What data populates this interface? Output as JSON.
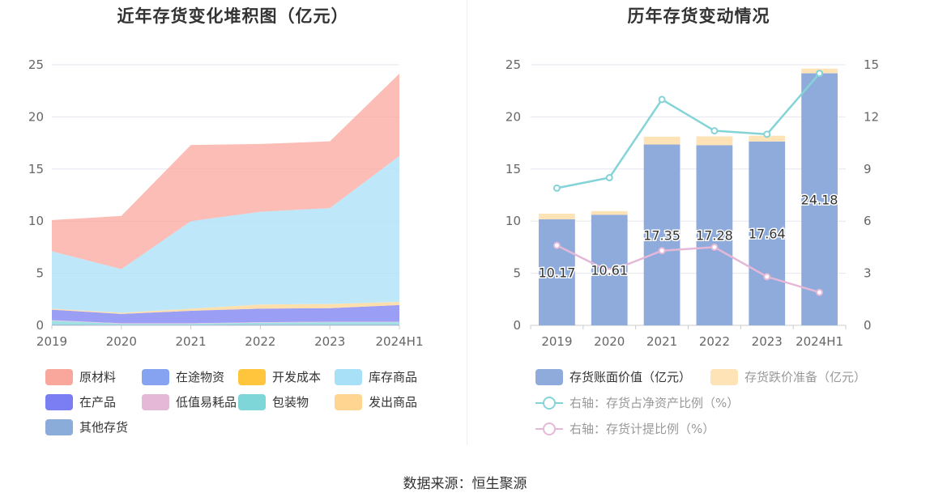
{
  "source": "数据来源：恒生聚源",
  "chart_data": [
    {
      "type": "area",
      "stacked": true,
      "title": "近年存货变化堆积图（亿元）",
      "categories": [
        "2019",
        "2020",
        "2021",
        "2022",
        "2023",
        "2024H1"
      ],
      "y_ticks": [
        "0",
        "5",
        "10",
        "15",
        "20",
        "25"
      ],
      "ylim": [
        0,
        25
      ],
      "grid": true,
      "legend_position": "bottom",
      "series": [
        {
          "name": "原材料",
          "color": "#f9a79c",
          "values": [
            3.0,
            5.1,
            7.3,
            6.5,
            6.4,
            7.9
          ]
        },
        {
          "name": "在途物资",
          "color": "#86a3f2",
          "values": [
            0.0,
            0.0,
            0.0,
            0.0,
            0.0,
            0.0
          ]
        },
        {
          "name": "开发成本",
          "color": "#ffc53d",
          "values": [
            0.0,
            0.0,
            0.0,
            0.0,
            0.0,
            0.0
          ]
        },
        {
          "name": "库存商品",
          "color": "#a8e0f8",
          "values": [
            5.5,
            4.2,
            8.4,
            8.9,
            9.2,
            14.0
          ]
        },
        {
          "name": "在产品",
          "color": "#7a7ef2",
          "values": [
            1.0,
            0.9,
            1.2,
            1.3,
            1.3,
            1.6
          ]
        },
        {
          "name": "低值易耗品",
          "color": "#e6b8d8",
          "values": [
            0.05,
            0.05,
            0.05,
            0.05,
            0.05,
            0.05
          ]
        },
        {
          "name": "包装物",
          "color": "#7fd6d9",
          "values": [
            0.35,
            0.1,
            0.1,
            0.15,
            0.2,
            0.2
          ]
        },
        {
          "name": "发出商品",
          "color": "#ffd591",
          "values": [
            0.1,
            0.1,
            0.2,
            0.4,
            0.4,
            0.3
          ]
        },
        {
          "name": "其他存货",
          "color": "#8aacd9",
          "values": [
            0.1,
            0.05,
            0.05,
            0.1,
            0.1,
            0.1
          ]
        }
      ]
    },
    {
      "type": "bar",
      "stacked": true,
      "title": "历年存货变动情况",
      "categories": [
        "2019",
        "2020",
        "2021",
        "2022",
        "2023",
        "2024H1"
      ],
      "y_ticks": [
        "0",
        "5",
        "10",
        "15",
        "20",
        "25"
      ],
      "y2_ticks": [
        "0",
        "3",
        "6",
        "9",
        "12",
        "15"
      ],
      "ylim": [
        0,
        25
      ],
      "y2lim": [
        0,
        15
      ],
      "grid": true,
      "legend_position": "bottom",
      "series": [
        {
          "name": "存货账面价值（亿元）",
          "color": "#8eabdb",
          "values": [
            10.17,
            10.61,
            17.35,
            17.28,
            17.64,
            24.18
          ],
          "labels": [
            "10.17",
            "10.61",
            "17.35",
            "17.28",
            "17.64",
            "24.18"
          ]
        },
        {
          "name": "存货跌价准备（亿元）",
          "color": "#fde3b6",
          "values": [
            0.55,
            0.35,
            0.75,
            0.85,
            0.55,
            0.45
          ]
        }
      ],
      "line_series": [
        {
          "name": "右轴：存货占净资产比例（%）",
          "color": "#84d4d7",
          "axis": "right",
          "values": [
            7.9,
            8.5,
            13.0,
            11.2,
            11.0,
            14.5
          ]
        },
        {
          "name": "右轴：存货计提比例（%）",
          "color": "#e6b8d8",
          "axis": "right",
          "values": [
            4.6,
            3.1,
            4.3,
            4.5,
            2.8,
            1.9
          ]
        }
      ]
    }
  ]
}
